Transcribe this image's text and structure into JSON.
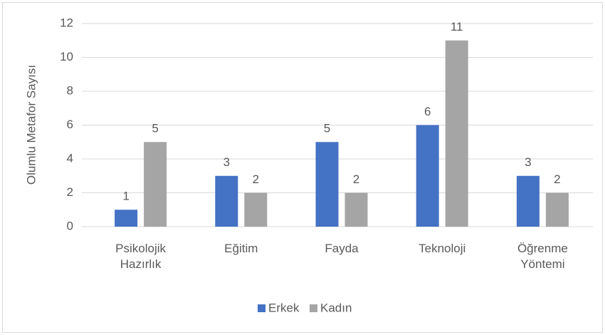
{
  "chart_data": {
    "type": "bar",
    "y_label": "Olumlu Metafor Sayısı",
    "categories": [
      "Psikolojik Hazırlık",
      "Eğitim",
      "Fayda",
      "Teknoloji",
      "Öğrenme Yöntemi"
    ],
    "series": [
      {
        "name": "Erkek",
        "color": "#4472c4",
        "values": [
          1,
          3,
          5,
          6,
          3
        ]
      },
      {
        "name": "Kadın",
        "color": "#a5a5a5",
        "values": [
          5,
          2,
          2,
          11,
          2
        ]
      }
    ],
    "ylim": [
      0,
      12
    ],
    "yticks": [
      0,
      2,
      4,
      6,
      8,
      10,
      12
    ],
    "grid": true,
    "legend": "bottom"
  }
}
